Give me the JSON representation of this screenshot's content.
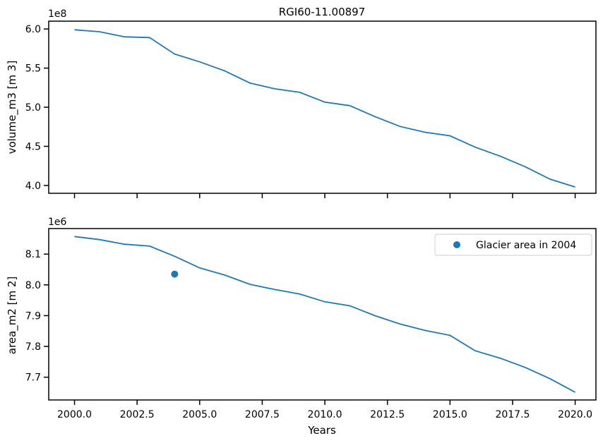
{
  "chart_data": [
    {
      "type": "line",
      "title": "RGI60-11.00897",
      "xlabel": "",
      "ylabel": "volume_m3 [m 3]",
      "y_offset_label": "1e8",
      "y_scale": 100000000,
      "xlim": [
        1998.97,
        2020.83
      ],
      "ylim": [
        3.9,
        6.1
      ],
      "y_ticks": [
        4.0,
        4.5,
        5.0,
        5.5,
        6.0
      ],
      "y_tick_labels": [
        "4.0",
        "4.5",
        "5.0",
        "5.5",
        "6.0"
      ],
      "x_ticks": [
        2000.0,
        2002.5,
        2005.0,
        2007.5,
        2010.0,
        2012.5,
        2015.0,
        2017.5,
        2020.0
      ],
      "grid": false,
      "series": [
        {
          "color": "#1f77b4",
          "x": [
            2000,
            2001,
            2002,
            2003,
            2004,
            2005,
            2006,
            2007,
            2008,
            2009,
            2010,
            2011,
            2012,
            2013,
            2014,
            2015,
            2016,
            2017,
            2018,
            2019,
            2020
          ],
          "values": [
            5.99,
            5.965,
            5.9,
            5.89,
            5.68,
            5.58,
            5.465,
            5.31,
            5.235,
            5.19,
            5.065,
            5.02,
            4.88,
            4.755,
            4.68,
            4.635,
            4.49,
            4.375,
            4.24,
            4.08,
            3.98
          ]
        }
      ]
    },
    {
      "type": "line",
      "title": "",
      "xlabel": "Years",
      "ylabel": "area_m2 [m 2]",
      "y_offset_label": "1e6",
      "y_scale": 1000000,
      "xlim": [
        1998.97,
        2020.83
      ],
      "ylim": [
        7.626,
        8.183
      ],
      "y_ticks": [
        7.7,
        7.8,
        7.9,
        8.0,
        8.1
      ],
      "y_tick_labels": [
        "7.7",
        "7.8",
        "7.9",
        "8.0",
        "8.1"
      ],
      "x_ticks": [
        2000.0,
        2002.5,
        2005.0,
        2007.5,
        2010.0,
        2012.5,
        2015.0,
        2017.5,
        2020.0
      ],
      "x_tick_labels": [
        "2000.0",
        "2002.5",
        "2005.0",
        "2007.5",
        "2010.0",
        "2012.5",
        "2015.0",
        "2017.5",
        "2020.0"
      ],
      "grid": false,
      "legend_position": "upper-right",
      "series": [
        {
          "color": "#1f77b4",
          "x": [
            2000,
            2001,
            2002,
            2003,
            2004,
            2005,
            2006,
            2007,
            2008,
            2009,
            2010,
            2011,
            2012,
            2013,
            2014,
            2015,
            2016,
            2017,
            2018,
            2019,
            2020
          ],
          "values": [
            8.157,
            8.147,
            8.132,
            8.126,
            8.093,
            8.055,
            8.032,
            8.002,
            7.985,
            7.97,
            7.945,
            7.932,
            7.9,
            7.873,
            7.852,
            7.836,
            7.786,
            7.762,
            7.732,
            7.695,
            7.651
          ]
        }
      ],
      "scatter": {
        "name": "Glacier area in 2004",
        "color": "#1f77b4",
        "x": [
          2004
        ],
        "values": [
          8.035
        ]
      }
    }
  ]
}
